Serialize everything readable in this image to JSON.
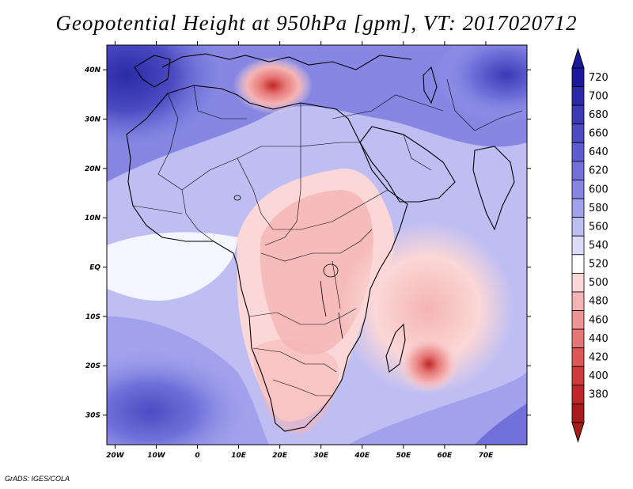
{
  "title": {
    "field": "Geopotential Height at 950hPa [gpm]",
    "valid_time_label": "VT:",
    "valid_time": "2017020712"
  },
  "credit": "GrADS: IGES/COLA",
  "axes": {
    "lat_labels": [
      "40N",
      "30N",
      "20N",
      "10N",
      "EQ",
      "10S",
      "20S",
      "30S"
    ],
    "lat_values": [
      40,
      30,
      20,
      10,
      0,
      -10,
      -20,
      -30
    ],
    "lon_labels": [
      "20W",
      "10W",
      "0",
      "10E",
      "20E",
      "30E",
      "40E",
      "50E",
      "60E",
      "70E"
    ],
    "lon_values": [
      -20,
      -10,
      0,
      10,
      20,
      30,
      40,
      50,
      60,
      70
    ],
    "lat_range": [
      -36,
      45
    ],
    "lon_range": [
      -22,
      80
    ]
  },
  "colorbar": {
    "labels": [
      "720",
      "700",
      "680",
      "660",
      "640",
      "620",
      "600",
      "580",
      "560",
      "540",
      "520",
      "500",
      "480",
      "460",
      "440",
      "420",
      "400",
      "380"
    ],
    "colors": [
      "#1a189c",
      "#2b2aa8",
      "#3b3ab5",
      "#4c4bc2",
      "#5e5dcf",
      "#7170da",
      "#8787e3",
      "#a1a1ec",
      "#bebef3",
      "#dcdcf8",
      "#ffffff",
      "#fbd7d7",
      "#f5b4b4",
      "#ee9494",
      "#e67575",
      "#dd5757",
      "#cf3b3b",
      "#bf2727",
      "#a81b1b"
    ],
    "over_color": "#1a189c",
    "under_color": "#a81b1b"
  }
}
